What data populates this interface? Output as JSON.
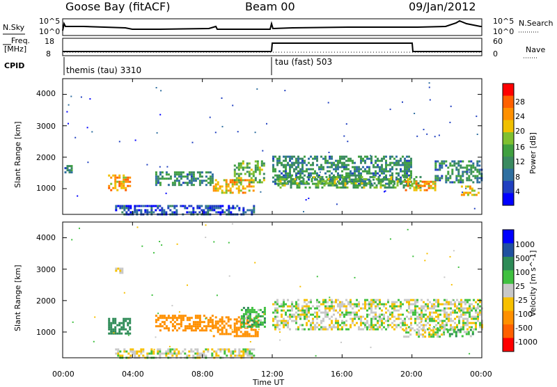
{
  "header": {
    "station": "Goose Bay (fitACF)",
    "beam": "Beam 00",
    "date": "09/Jan/2012"
  },
  "top_panels": {
    "nsky_label": "N.Sky",
    "nsearch_label": "N.Search",
    "nsky_ticks": [
      "10^5",
      "10^0"
    ],
    "nsearch_ticks": [
      "10^5",
      "10^0"
    ],
    "freq_label_line1": "Freq.",
    "freq_label_line2": "[MHz]",
    "freq_ticks": [
      "18",
      "8"
    ],
    "nave_label": "Nave",
    "nave_ticks": [
      "60",
      "0"
    ],
    "cpid_label": "CPID",
    "cpid_segments": [
      {
        "name": "themis (tau) 3310",
        "start_hour": 0,
        "end_hour": 12
      },
      {
        "name": "tau (fast) 503",
        "start_hour": 12,
        "end_hour": 24
      }
    ]
  },
  "chart_data": [
    {
      "type": "heatmap",
      "title": "",
      "xlabel": "Time UT",
      "ylabel": "Slant Range [km]",
      "x_ticks": [
        "00:00",
        "04:00",
        "08:00",
        "12:00",
        "16:00",
        "20:00",
        "00:00"
      ],
      "xlim": [
        0,
        24
      ],
      "y_ticks": [
        "1000",
        "2000",
        "3000",
        "4000"
      ],
      "ylim": [
        180,
        4500
      ],
      "colorbar_label": "Power [dB]",
      "colorbar_ticks": [
        "4",
        "8",
        "12",
        "16",
        "20",
        "24",
        "28"
      ],
      "colorbar_range": [
        0,
        30
      ],
      "colors": [
        "#0000ff",
        "#2040c0",
        "#2f6fa0",
        "#3a8a60",
        "#40a040",
        "#80c030",
        "#f0c000",
        "#ff9000",
        "#ff6000",
        "#ff0000"
      ],
      "echo_regions": [
        {
          "t0": 0.1,
          "t1": 0.5,
          "r0": 1450,
          "r1": 1750,
          "power": 8
        },
        {
          "t0": 2.6,
          "t1": 3.9,
          "r0": 950,
          "r1": 1450,
          "power": 22
        },
        {
          "t0": 5.3,
          "t1": 8.6,
          "r0": 1150,
          "r1": 1550,
          "power": 10
        },
        {
          "t0": 8.6,
          "t1": 10.9,
          "r0": 850,
          "r1": 1300,
          "power": 20
        },
        {
          "t0": 9.8,
          "t1": 11.5,
          "r0": 1200,
          "r1": 1900,
          "power": 14
        },
        {
          "t0": 12.0,
          "t1": 20.0,
          "r0": 1150,
          "r1": 2050,
          "power": 10
        },
        {
          "t0": 12.3,
          "t1": 20.5,
          "r0": 1050,
          "r1": 1400,
          "power": 14
        },
        {
          "t0": 19.6,
          "t1": 21.3,
          "r0": 950,
          "r1": 1250,
          "power": 22
        },
        {
          "t0": 21.3,
          "t1": 24.0,
          "r0": 1200,
          "r1": 1900,
          "power": 10
        },
        {
          "t0": 22.8,
          "t1": 23.8,
          "r0": 800,
          "r1": 1100,
          "power": 18
        },
        {
          "t0": 3.0,
          "t1": 11.0,
          "r0": 200,
          "r1": 480,
          "power": 6
        }
      ]
    },
    {
      "type": "heatmap",
      "title": "",
      "xlabel": "Time UT",
      "ylabel": "Slant Range [km]",
      "x_ticks": [
        "00:00",
        "04:00",
        "08:00",
        "12:00",
        "16:00",
        "20:00",
        "00:00"
      ],
      "xlim": [
        0,
        24
      ],
      "y_ticks": [
        "1000",
        "2000",
        "3000",
        "4000"
      ],
      "ylim": [
        180,
        4500
      ],
      "colorbar_label": "Velocity [m s^-1]",
      "colorbar_ticks": [
        "1000",
        "500",
        "100",
        "25",
        "-25",
        "-100",
        "-500",
        "-1000"
      ],
      "colors": [
        "#0000ff",
        "#2050a0",
        "#2e8b57",
        "#40c040",
        "#c8c8c8",
        "#f7c000",
        "#ff9000",
        "#ff6000",
        "#ff0000"
      ],
      "echo_regions": [
        {
          "t0": 2.6,
          "t1": 3.9,
          "r0": 950,
          "r1": 1450,
          "velocity": 300
        },
        {
          "t0": 5.3,
          "t1": 8.6,
          "r0": 1050,
          "r1": 1550,
          "velocity": -200
        },
        {
          "t0": 8.6,
          "t1": 11.2,
          "r0": 900,
          "r1": 1500,
          "velocity": -200
        },
        {
          "t0": 10.2,
          "t1": 11.6,
          "r0": 1200,
          "r1": 1800,
          "velocity": 60
        },
        {
          "t0": 12.0,
          "t1": 24.0,
          "r0": 1100,
          "r1": 2050,
          "velocity": 0
        },
        {
          "t0": 19.5,
          "t1": 21.8,
          "r0": 850,
          "r1": 1150,
          "velocity": 0
        },
        {
          "t0": 22.0,
          "t1": 23.5,
          "r0": 900,
          "r1": 1100,
          "velocity": 60
        },
        {
          "t0": 3.0,
          "t1": 11.0,
          "r0": 200,
          "r1": 480,
          "velocity": 0
        },
        {
          "t0": 3.0,
          "t1": 3.4,
          "r0": 2900,
          "r1": 3050,
          "velocity": 0
        }
      ]
    }
  ]
}
